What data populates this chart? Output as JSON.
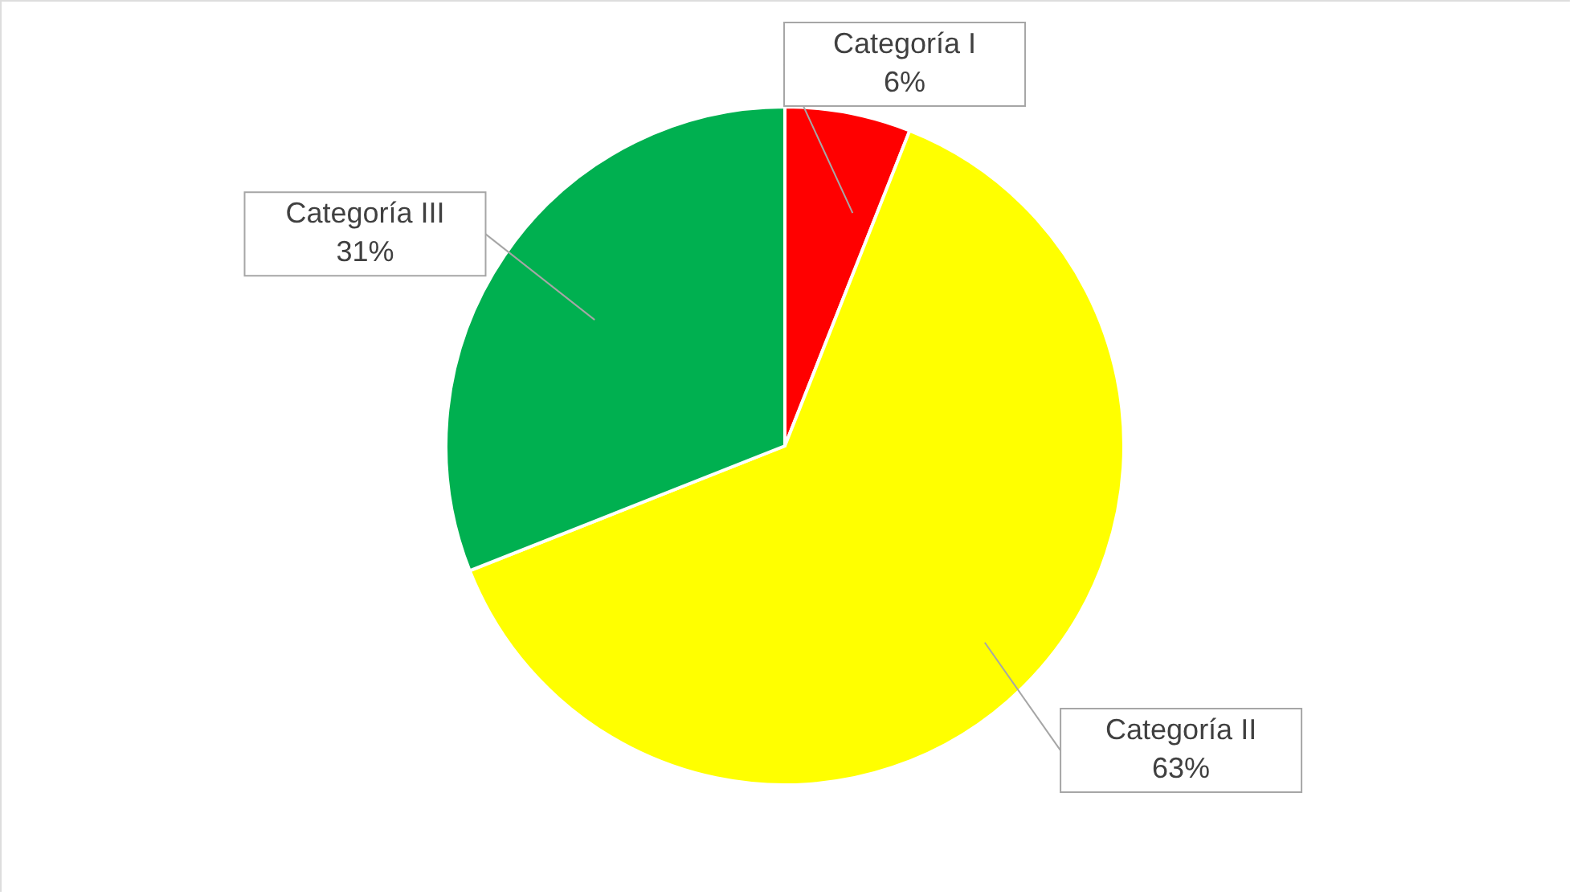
{
  "chart_data": {
    "type": "pie",
    "categories": [
      "Categoría I",
      "Categoría II",
      "Categoría III"
    ],
    "values": [
      6,
      63,
      31
    ],
    "colors": [
      "#ff0000",
      "#ffff00",
      "#00b050"
    ],
    "value_labels": [
      "6%",
      "63%",
      "31%"
    ]
  }
}
